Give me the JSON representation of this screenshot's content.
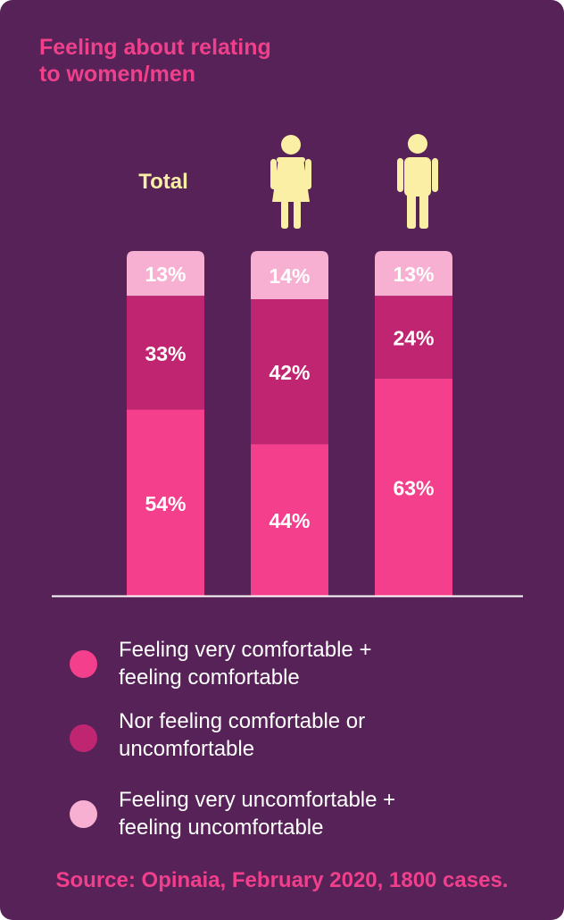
{
  "title_lines": [
    "Feeling about relating",
    "to women/men"
  ],
  "colors": {
    "background": "#572257",
    "comfortable": "#f33f8c",
    "neutral": "#c02572",
    "uncomfortable": "#f8b0d2",
    "header_text": "#fbefa6",
    "title": "#f0408c",
    "axis": "#ffffff"
  },
  "icons": {
    "women": "woman-icon",
    "men": "man-icon"
  },
  "chart_data": {
    "type": "bar",
    "stacked": true,
    "categories": [
      "Total",
      "Women",
      "Men"
    ],
    "category_labels": [
      "Total",
      "",
      ""
    ],
    "ylim": [
      0,
      100
    ],
    "grid": false,
    "legend_position": "bottom",
    "series": [
      {
        "name": "Feeling very comfortable + feeling comfortable",
        "values": [
          54,
          44,
          63
        ],
        "labels": [
          "54%",
          "44%",
          "63%"
        ]
      },
      {
        "name": "Nor feeling comfortable or uncomfortable",
        "values": [
          33,
          42,
          24
        ],
        "labels": [
          "33%",
          "42%",
          "24%"
        ]
      },
      {
        "name": "Feeling very uncomfortable + feeling uncomfortable",
        "values": [
          13,
          14,
          13
        ],
        "labels": [
          "13%",
          "14%",
          "13%"
        ]
      }
    ]
  },
  "legend": [
    {
      "lines": [
        "Feeling very comfortable +",
        "feeling comfortable"
      ]
    },
    {
      "lines": [
        "Nor feeling comfortable or",
        "uncomfortable"
      ]
    },
    {
      "lines": [
        "Feeling very uncomfortable +",
        "feeling uncomfortable"
      ]
    }
  ],
  "source": "Source: Opinaia, February 2020, 1800 cases."
}
